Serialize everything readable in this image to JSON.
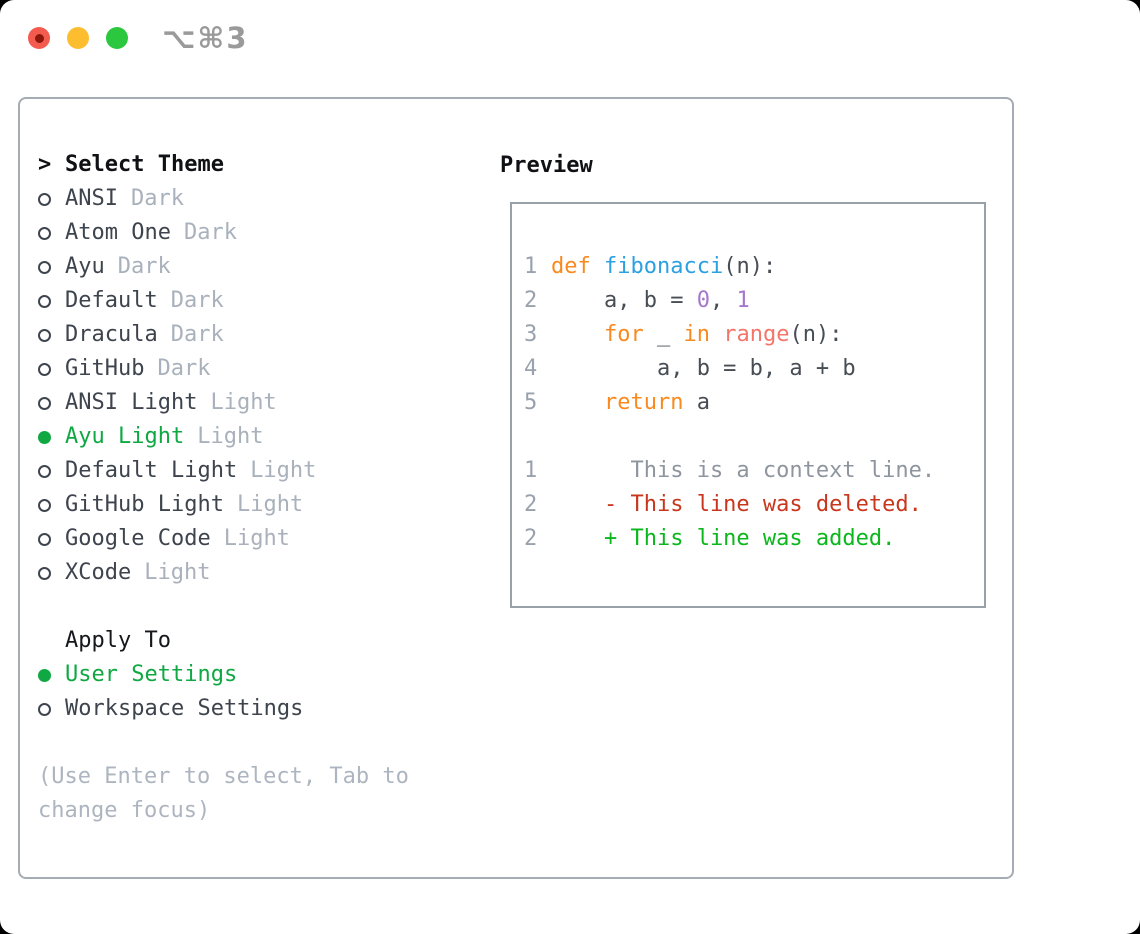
{
  "titlebar": {
    "title": "⌥⌘3",
    "traffic_lights": [
      {
        "name": "close-button",
        "color": "#f35b4f",
        "dot": "#8d170c"
      },
      {
        "name": "minimize-button",
        "color": "#fcbd2f",
        "dot": null
      },
      {
        "name": "zoom-button",
        "color": "#2bc83f",
        "dot": null
      }
    ]
  },
  "theme_panel": {
    "header_prefix": ">",
    "header_label": "Select Theme",
    "items": [
      {
        "name": "ANSI",
        "tag": "Dark",
        "selected": false
      },
      {
        "name": "Atom One",
        "tag": "Dark",
        "selected": false
      },
      {
        "name": "Ayu",
        "tag": "Dark",
        "selected": false
      },
      {
        "name": "Default",
        "tag": "Dark",
        "selected": false
      },
      {
        "name": "Dracula",
        "tag": "Dark",
        "selected": false
      },
      {
        "name": "GitHub",
        "tag": "Dark",
        "selected": false
      },
      {
        "name": "ANSI Light",
        "tag": "Light",
        "selected": false
      },
      {
        "name": "Ayu Light",
        "tag": "Light",
        "selected": true
      },
      {
        "name": "Default Light",
        "tag": "Light",
        "selected": false
      },
      {
        "name": "GitHub Light",
        "tag": "Light",
        "selected": false
      },
      {
        "name": "Google Code",
        "tag": "Light",
        "selected": false
      },
      {
        "name": "XCode",
        "tag": "Light",
        "selected": false
      }
    ]
  },
  "apply_panel": {
    "header": "Apply To",
    "options": [
      {
        "label": "User Settings",
        "selected": true
      },
      {
        "label": "Workspace Settings",
        "selected": false
      }
    ]
  },
  "hint": "(Use Enter to select, Tab to change focus)",
  "preview": {
    "header": "Preview",
    "code_lines": [
      {
        "num": "1",
        "tokens": [
          {
            "t": "def ",
            "c": "keyword"
          },
          {
            "t": "fibonacci",
            "c": "function"
          },
          {
            "t": "(n):",
            "c": "plain"
          }
        ]
      },
      {
        "num": "2",
        "tokens": [
          {
            "t": "    a, b = ",
            "c": "plain"
          },
          {
            "t": "0",
            "c": "number"
          },
          {
            "t": ", ",
            "c": "plain"
          },
          {
            "t": "1",
            "c": "number"
          }
        ]
      },
      {
        "num": "3",
        "tokens": [
          {
            "t": "    ",
            "c": "plain"
          },
          {
            "t": "for",
            "c": "keyword"
          },
          {
            "t": " _ ",
            "c": "plain"
          },
          {
            "t": "in",
            "c": "keyword"
          },
          {
            "t": " ",
            "c": "plain"
          },
          {
            "t": "range",
            "c": "builtin"
          },
          {
            "t": "(n):",
            "c": "plain"
          }
        ]
      },
      {
        "num": "4",
        "tokens": [
          {
            "t": "        a, b = b, a + b",
            "c": "plain"
          }
        ]
      },
      {
        "num": "5",
        "tokens": [
          {
            "t": "    ",
            "c": "plain"
          },
          {
            "t": "return",
            "c": "keyword"
          },
          {
            "t": " a",
            "c": "plain"
          }
        ]
      }
    ],
    "diff_lines": [
      {
        "num": "1",
        "tokens": [
          {
            "t": "      This is a context line.",
            "c": "context"
          }
        ]
      },
      {
        "num": "2",
        "tokens": [
          {
            "t": "    - This line was deleted.",
            "c": "deleted"
          }
        ]
      },
      {
        "num": "2",
        "tokens": [
          {
            "t": "    + This line was added.",
            "c": "added"
          }
        ]
      }
    ]
  },
  "colors": {
    "accent_green": "#0fa843",
    "window_border": "#a6acb4",
    "preview_border": "#98a0a8",
    "syntax": {
      "keyword": "#f98a1f",
      "function": "#2da0e2",
      "number": "#a578cf",
      "builtin": "#f4756a",
      "plain": "#474d55",
      "context": "#8e959e",
      "deleted": "#c8371d",
      "added": "#0bb71d",
      "lineno": "#99a1ad"
    }
  }
}
